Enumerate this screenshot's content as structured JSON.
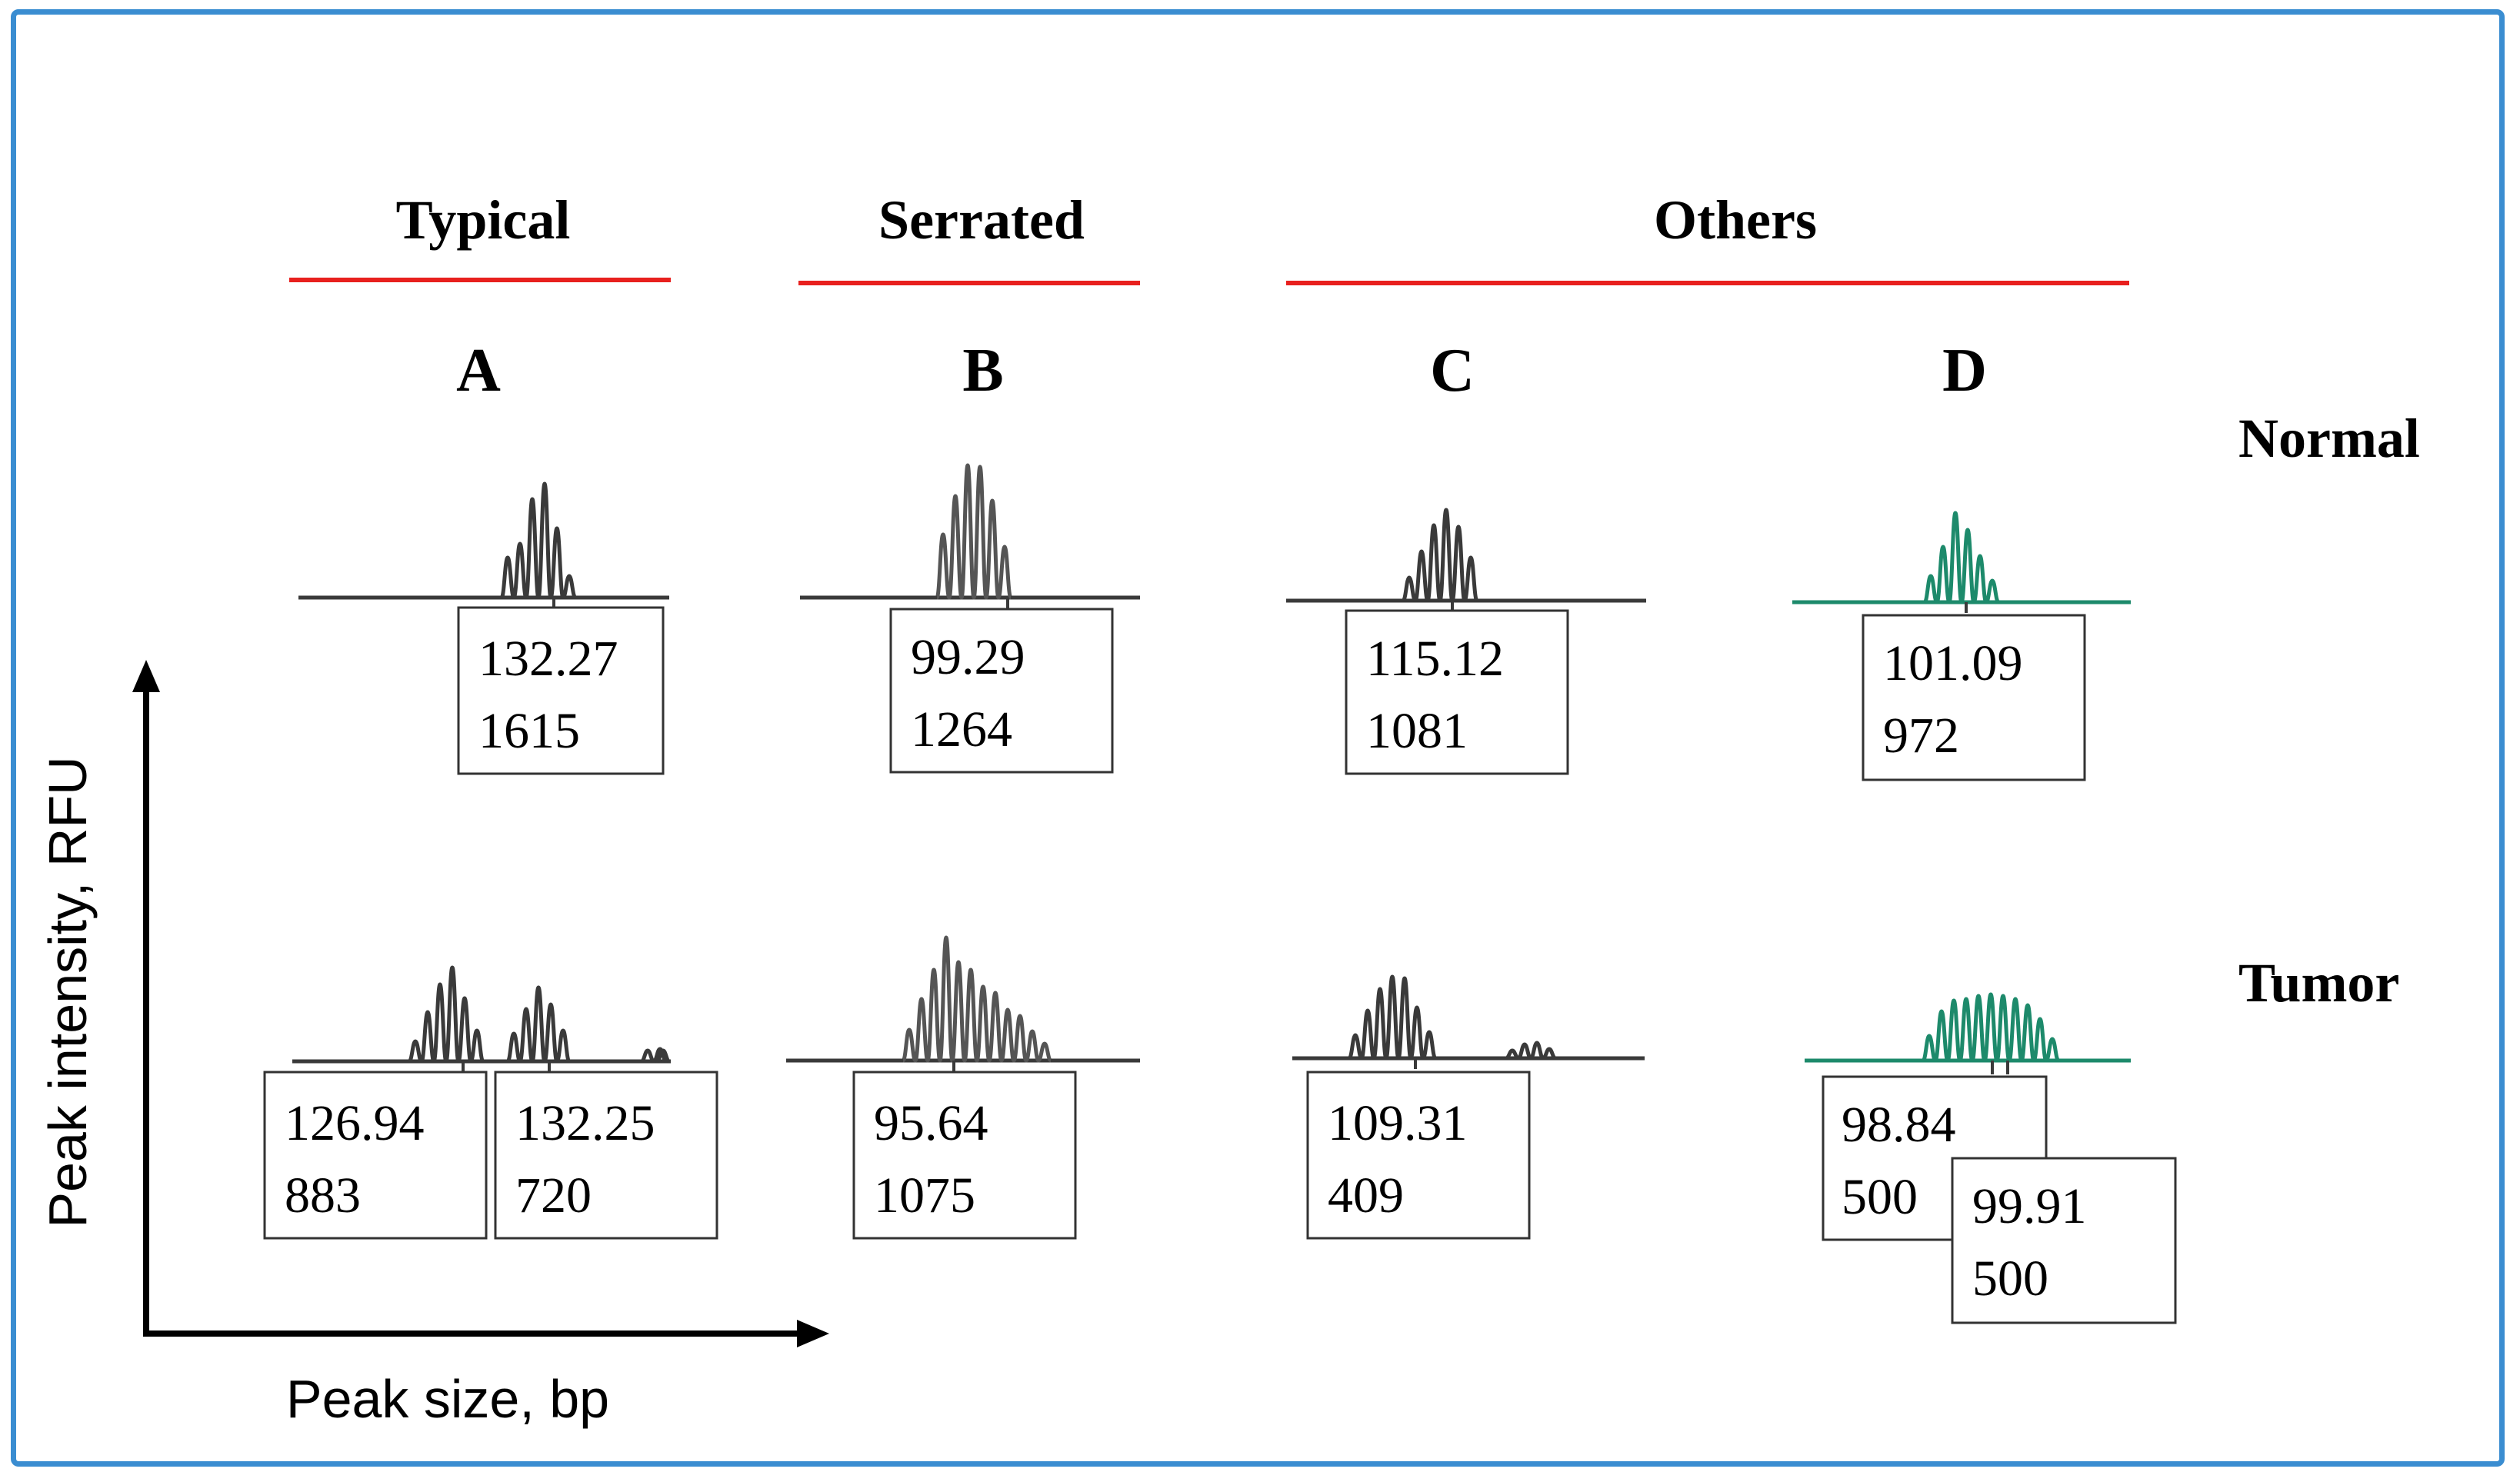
{
  "groups": [
    {
      "id": "typical",
      "label": "Typical"
    },
    {
      "id": "serrated",
      "label": "Serrated"
    },
    {
      "id": "others",
      "label": "Others"
    }
  ],
  "columns": [
    "A",
    "B",
    "C",
    "D"
  ],
  "rows": [
    "Normal",
    "Tumor"
  ],
  "axes": {
    "y_label": "Peak intensity, RFU",
    "x_label": "Peak size, bp"
  },
  "colors": {
    "group_line": "#e8201e",
    "trace_dark": "#3a3a3a",
    "trace_green": "#1d8a6b",
    "frame": "#3a8dd1"
  },
  "panels": {
    "normal": [
      {
        "column": "A",
        "peaks": [
          {
            "size": "132.27",
            "height": "1615"
          }
        ]
      },
      {
        "column": "B",
        "peaks": [
          {
            "size": "99.29",
            "height": "1264"
          }
        ]
      },
      {
        "column": "C",
        "peaks": [
          {
            "size": "115.12",
            "height": "1081"
          }
        ]
      },
      {
        "column": "D",
        "peaks": [
          {
            "size": "101.09",
            "height": "972"
          }
        ]
      }
    ],
    "tumor": [
      {
        "column": "A",
        "peaks": [
          {
            "size": "126.94",
            "height": "883"
          },
          {
            "size": "132.25",
            "height": "720"
          }
        ]
      },
      {
        "column": "B",
        "peaks": [
          {
            "size": "95.64",
            "height": "1075"
          }
        ]
      },
      {
        "column": "C",
        "peaks": [
          {
            "size": "109.31",
            "height": "409"
          }
        ]
      },
      {
        "column": "D",
        "peaks": [
          {
            "size": "98.84",
            "height": "500"
          },
          {
            "size": "99.91",
            "height": "500"
          }
        ]
      }
    ]
  }
}
